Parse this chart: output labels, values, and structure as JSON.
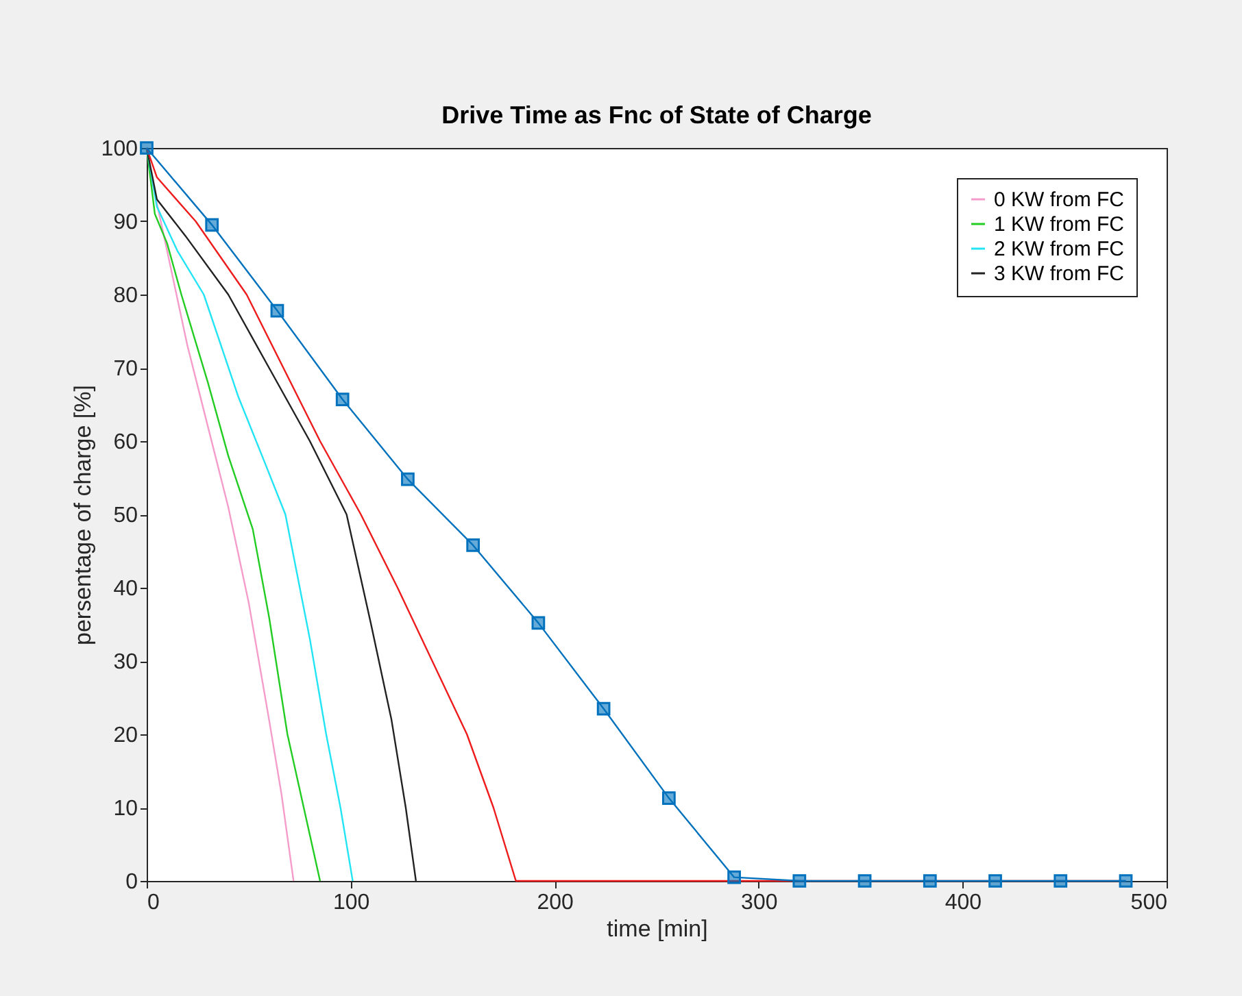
{
  "chart_data": {
    "type": "line",
    "title": "Drive Time as Fnc of State of Charge",
    "xlabel": "time [min]",
    "ylabel": "persentage of charge [%]",
    "xlim": [
      0,
      500
    ],
    "xticks": [
      0,
      100,
      200,
      300,
      400,
      500
    ],
    "ylim": [
      0,
      100
    ],
    "yticks": [
      0,
      10,
      20,
      30,
      40,
      50,
      60,
      70,
      80,
      90,
      100
    ],
    "grid": false,
    "legend": "top right",
    "marker": "none",
    "line_style": "solid",
    "series": [
      {
        "name": "0 KW from FC",
        "color": "#f59ccb",
        "x": [
          0,
          3,
          10,
          20,
          30,
          40,
          50,
          60,
          66,
          72
        ],
        "values": [
          100,
          95,
          86,
          73,
          62,
          51,
          38,
          22,
          12,
          0
        ]
      },
      {
        "name": "1 KW from FC",
        "color": "#22cc22",
        "x": [
          0,
          4,
          10,
          17,
          30,
          40,
          52,
          60,
          69,
          77,
          85
        ],
        "values": [
          100,
          91,
          87,
          80,
          68,
          58,
          48,
          36,
          20,
          10,
          0
        ]
      },
      {
        "name": "2 KW from FC",
        "color": "#22e4f4",
        "x": [
          0,
          5,
          15,
          28,
          45,
          58,
          68,
          80,
          88,
          95,
          101
        ],
        "values": [
          100,
          92,
          86,
          80,
          66,
          57,
          50,
          33,
          20,
          10,
          0
        ]
      },
      {
        "name": "3 KW from FC",
        "color": "#222222",
        "x": [
          0,
          5,
          19,
          40,
          60,
          80,
          98,
          110,
          120,
          127,
          132
        ],
        "values": [
          100,
          93,
          88,
          80,
          70,
          60,
          50,
          35,
          22,
          10,
          0
        ]
      },
      {
        "color": "#ee1c1c",
        "x": [
          0,
          5,
          24,
          49,
          67,
          85,
          105,
          123,
          140,
          157,
          170,
          181,
          480
        ],
        "values": [
          100,
          96,
          90,
          80,
          70,
          60,
          50,
          40,
          30,
          20,
          10,
          0,
          0
        ]
      },
      {
        "color": "#0072bd",
        "marker": "square",
        "x": [
          0,
          32,
          64,
          96,
          128,
          160,
          192,
          224,
          256,
          288,
          320,
          352,
          384,
          416,
          448,
          480
        ],
        "values": [
          100,
          89.5,
          77.8,
          65.7,
          54.8,
          45.8,
          35.2,
          23.5,
          11.3,
          0.5,
          0,
          0,
          0,
          0,
          0,
          0
        ]
      }
    ]
  }
}
